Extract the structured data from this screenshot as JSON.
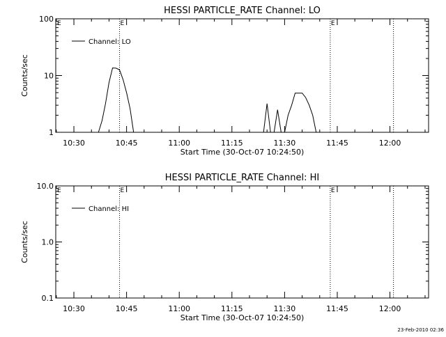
{
  "footer": {
    "timestamp": "23-Feb-2010 02:36"
  },
  "chart_data": [
    {
      "type": "line",
      "title": "HESSI PARTICLE_RATE Channel: LO",
      "xlabel": "Start Time (30-Oct-07 10:24:50)",
      "ylabel": "Counts/sec",
      "y_scale": "log",
      "ylim": [
        1,
        100
      ],
      "y_ticks": [
        "1",
        "10",
        "100"
      ],
      "x_ticks": [
        "10:30",
        "10:45",
        "11:00",
        "11:15",
        "11:30",
        "11:45",
        "12:00"
      ],
      "legend": {
        "position": "top-left",
        "entries": [
          "Channel: LO"
        ]
      },
      "markers": [
        {
          "time": "10:43",
          "label": "E"
        },
        {
          "time": "11:43",
          "label": "E"
        },
        {
          "time": "12:01",
          "label": ""
        }
      ],
      "series": [
        {
          "name": "Channel: LO",
          "segments": [
            [
              [
                "10:37",
                1
              ],
              [
                "10:38",
                1.6
              ],
              [
                "10:39",
                3.2
              ],
              [
                "10:40",
                7.5
              ],
              [
                "10:41",
                13.6
              ],
              [
                "10:42",
                13.5
              ],
              [
                "10:43",
                12.6
              ],
              [
                "10:44",
                8.5
              ],
              [
                "10:45",
                5.0
              ],
              [
                "10:46",
                2.6
              ],
              [
                "10:47",
                1
              ]
            ],
            [
              [
                "11:24",
                1
              ],
              [
                "11:25",
                3.2
              ],
              [
                "11:26",
                1
              ]
            ],
            [
              [
                "11:27",
                1
              ],
              [
                "11:28",
                2.5
              ],
              [
                "11:29",
                1
              ]
            ],
            [
              [
                "11:30",
                1
              ],
              [
                "11:31",
                2.0
              ],
              [
                "11:32",
                3.0
              ],
              [
                "11:33",
                4.9
              ],
              [
                "11:34",
                4.9
              ],
              [
                "11:35",
                4.9
              ],
              [
                "11:36",
                4.1
              ],
              [
                "11:37",
                3.0
              ],
              [
                "11:38",
                2.0
              ],
              [
                "11:39",
                1
              ]
            ]
          ]
        }
      ]
    },
    {
      "type": "line",
      "title": "HESSI PARTICLE_RATE Channel: HI",
      "xlabel": "Start Time (30-Oct-07 10:24:50)",
      "ylabel": "Counts/sec",
      "y_scale": "log",
      "ylim": [
        0.1,
        10
      ],
      "y_ticks": [
        "0.1",
        "1.0",
        "10.0"
      ],
      "x_ticks": [
        "10:30",
        "10:45",
        "11:00",
        "11:15",
        "11:30",
        "11:45",
        "12:00"
      ],
      "legend": {
        "position": "top-left",
        "entries": [
          "Channel: HI"
        ]
      },
      "markers": [
        {
          "time": "10:43",
          "label": "E"
        },
        {
          "time": "11:43",
          "label": "E"
        },
        {
          "time": "12:01",
          "label": ""
        }
      ],
      "series": [
        {
          "name": "Channel: HI",
          "segments": []
        }
      ]
    }
  ]
}
